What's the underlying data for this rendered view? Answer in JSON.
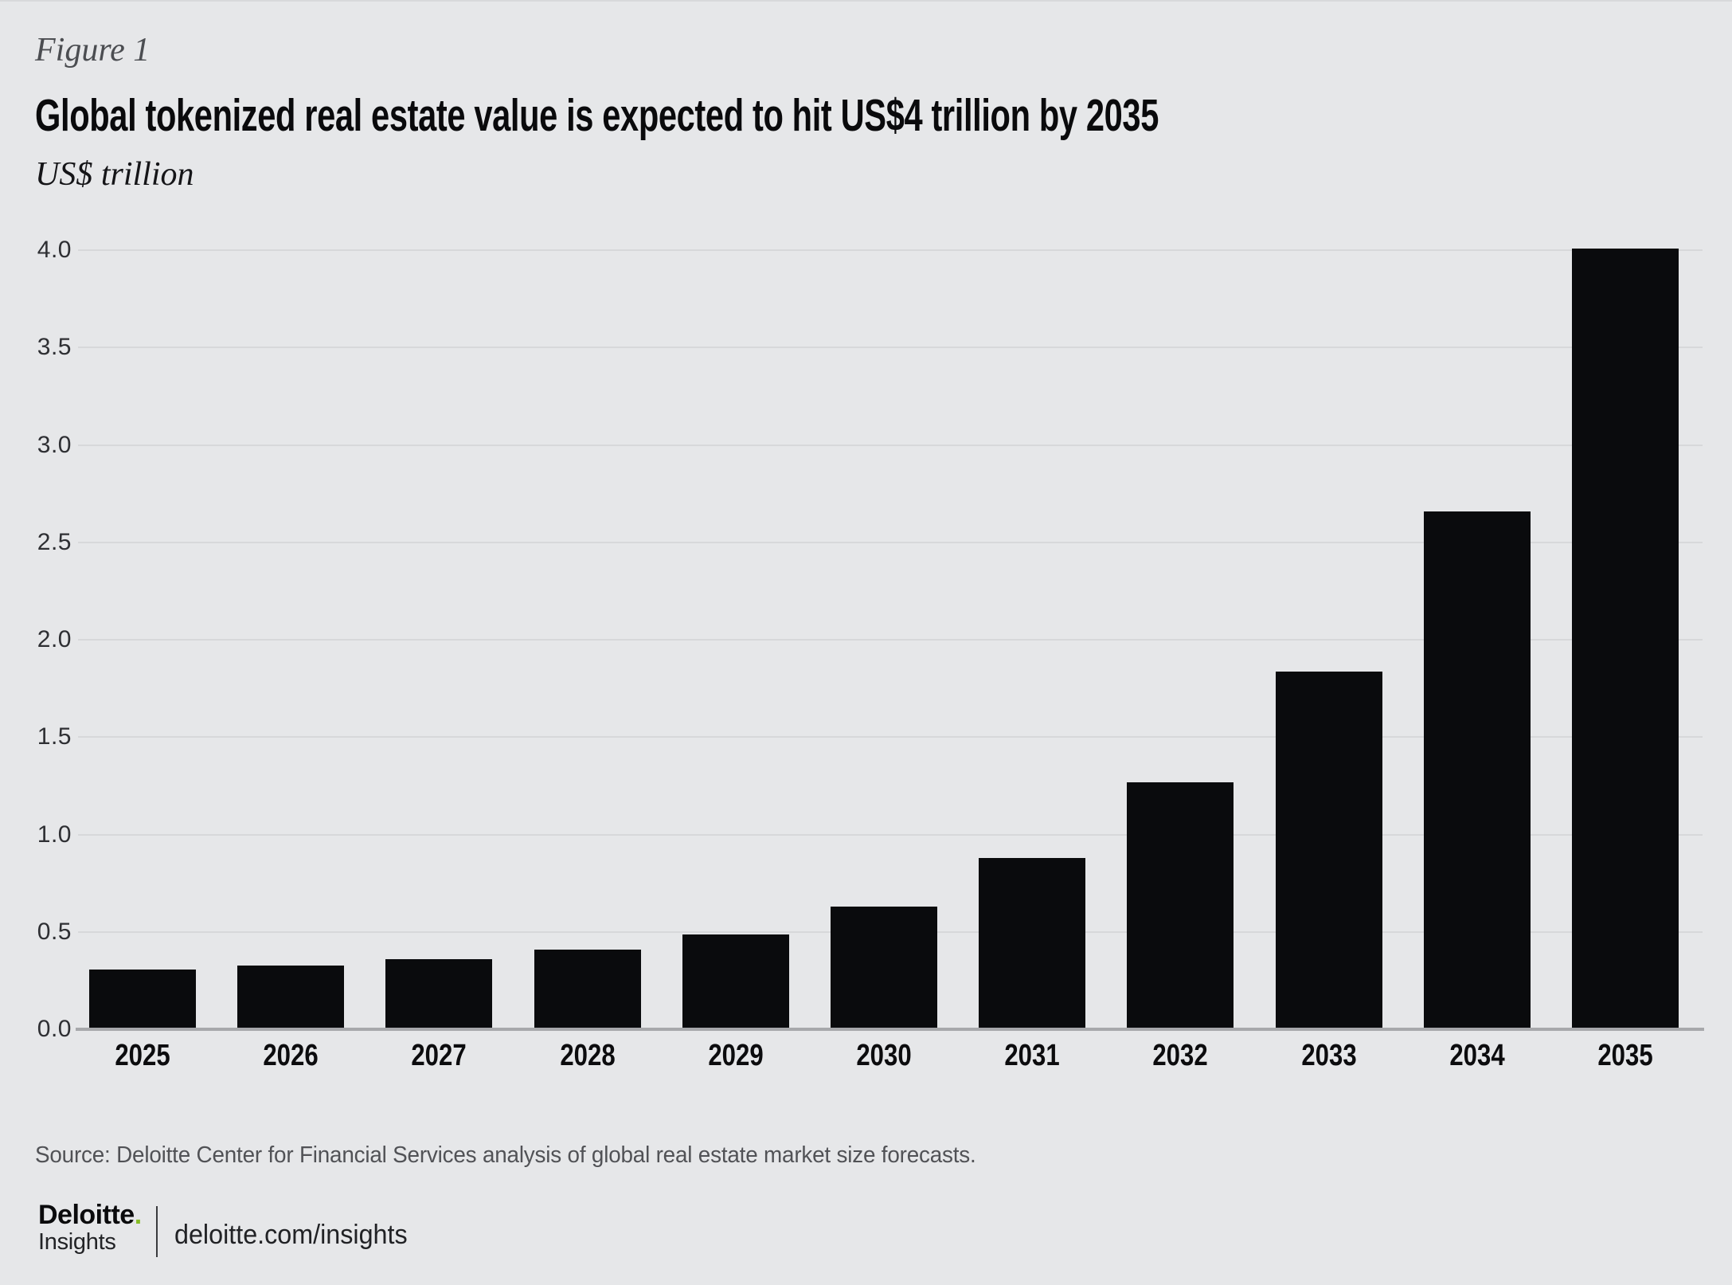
{
  "figure": {
    "label": "Figure 1",
    "title": "Global tokenized real estate value is expected to hit US$4 trillion by 2035",
    "unit_label": "US$ trillion"
  },
  "chart_data": {
    "type": "bar",
    "categories": [
      "2025",
      "2026",
      "2027",
      "2028",
      "2029",
      "2030",
      "2031",
      "2032",
      "2033",
      "2034",
      "2035"
    ],
    "values": [
      0.3,
      0.32,
      0.35,
      0.4,
      0.48,
      0.62,
      0.87,
      1.26,
      1.83,
      2.65,
      4.0
    ],
    "title": "Global tokenized real estate value is expected to hit US$4 trillion by 2035",
    "xlabel": "",
    "ylabel": "US$ trillion",
    "ylim": [
      0,
      4.0
    ],
    "ytick_step": 0.5,
    "yticks": [
      "0.0",
      "0.5",
      "1.0",
      "1.5",
      "2.0",
      "2.5",
      "3.0",
      "3.5",
      "4.0"
    ],
    "grid": true,
    "legend_position": "none",
    "bar_color": "#0a0b0d",
    "background_color": "#e6e7e9"
  },
  "footer": {
    "source": "Source: Deloitte Center for Financial Services analysis of global real estate market size forecasts.",
    "logo": {
      "brand": "Deloitte",
      "dot": ".",
      "sub": "Insights",
      "url": "deloitte.com/insights",
      "accent_color": "#86bc25"
    }
  }
}
